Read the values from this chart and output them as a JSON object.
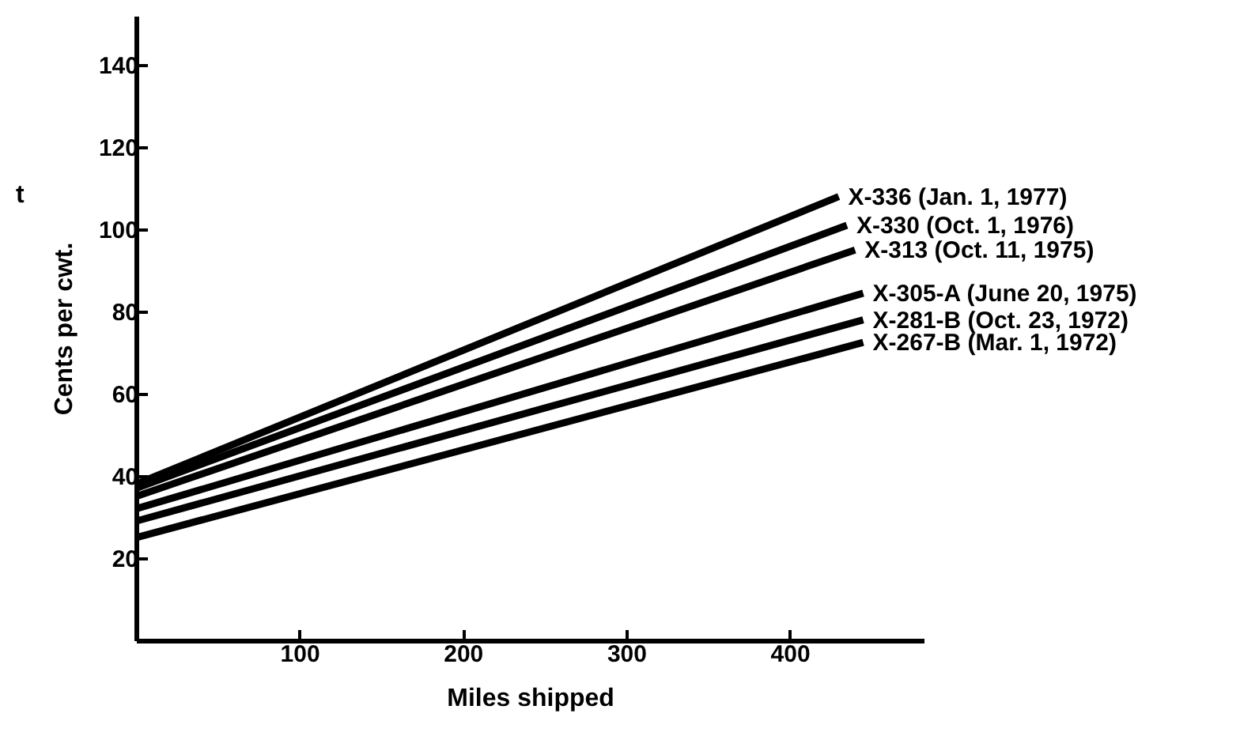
{
  "chart_data": {
    "type": "line",
    "xlabel": "Miles shipped",
    "ylabel": "Cents per cwt.",
    "annotations": [
      "t"
    ],
    "xlim": [
      0,
      482
    ],
    "xticks": [
      100,
      200,
      300,
      400
    ],
    "ylim": [
      0,
      152
    ],
    "yticks": [
      20,
      40,
      60,
      80,
      100,
      120,
      140
    ],
    "line_style": "solid",
    "marker": "none",
    "series": [
      {
        "name": "X-336 (Jan. 1, 1977)",
        "color": "#000000",
        "x": [
          0,
          430
        ],
        "values": [
          38,
          108
        ]
      },
      {
        "name": "X-330 (Oct. 1, 1976)",
        "color": "#000000",
        "x": [
          0,
          435
        ],
        "values": [
          37,
          101
        ]
      },
      {
        "name": "X-313 (Oct. 11, 1975)",
        "color": "#000000",
        "x": [
          0,
          440
        ],
        "values": [
          35,
          95
        ]
      },
      {
        "name": "X-305-A (June 20, 1975)",
        "color": "#000000",
        "x": [
          0,
          445
        ],
        "values": [
          32,
          84.5
        ]
      },
      {
        "name": "X-281-B (Oct. 23, 1972)",
        "color": "#000000",
        "x": [
          0,
          445
        ],
        "values": [
          29,
          78
        ]
      },
      {
        "name": "X-267-B (Mar. 1, 1972)",
        "color": "#000000",
        "x": [
          0,
          445
        ],
        "values": [
          25,
          72.5
        ]
      }
    ]
  }
}
